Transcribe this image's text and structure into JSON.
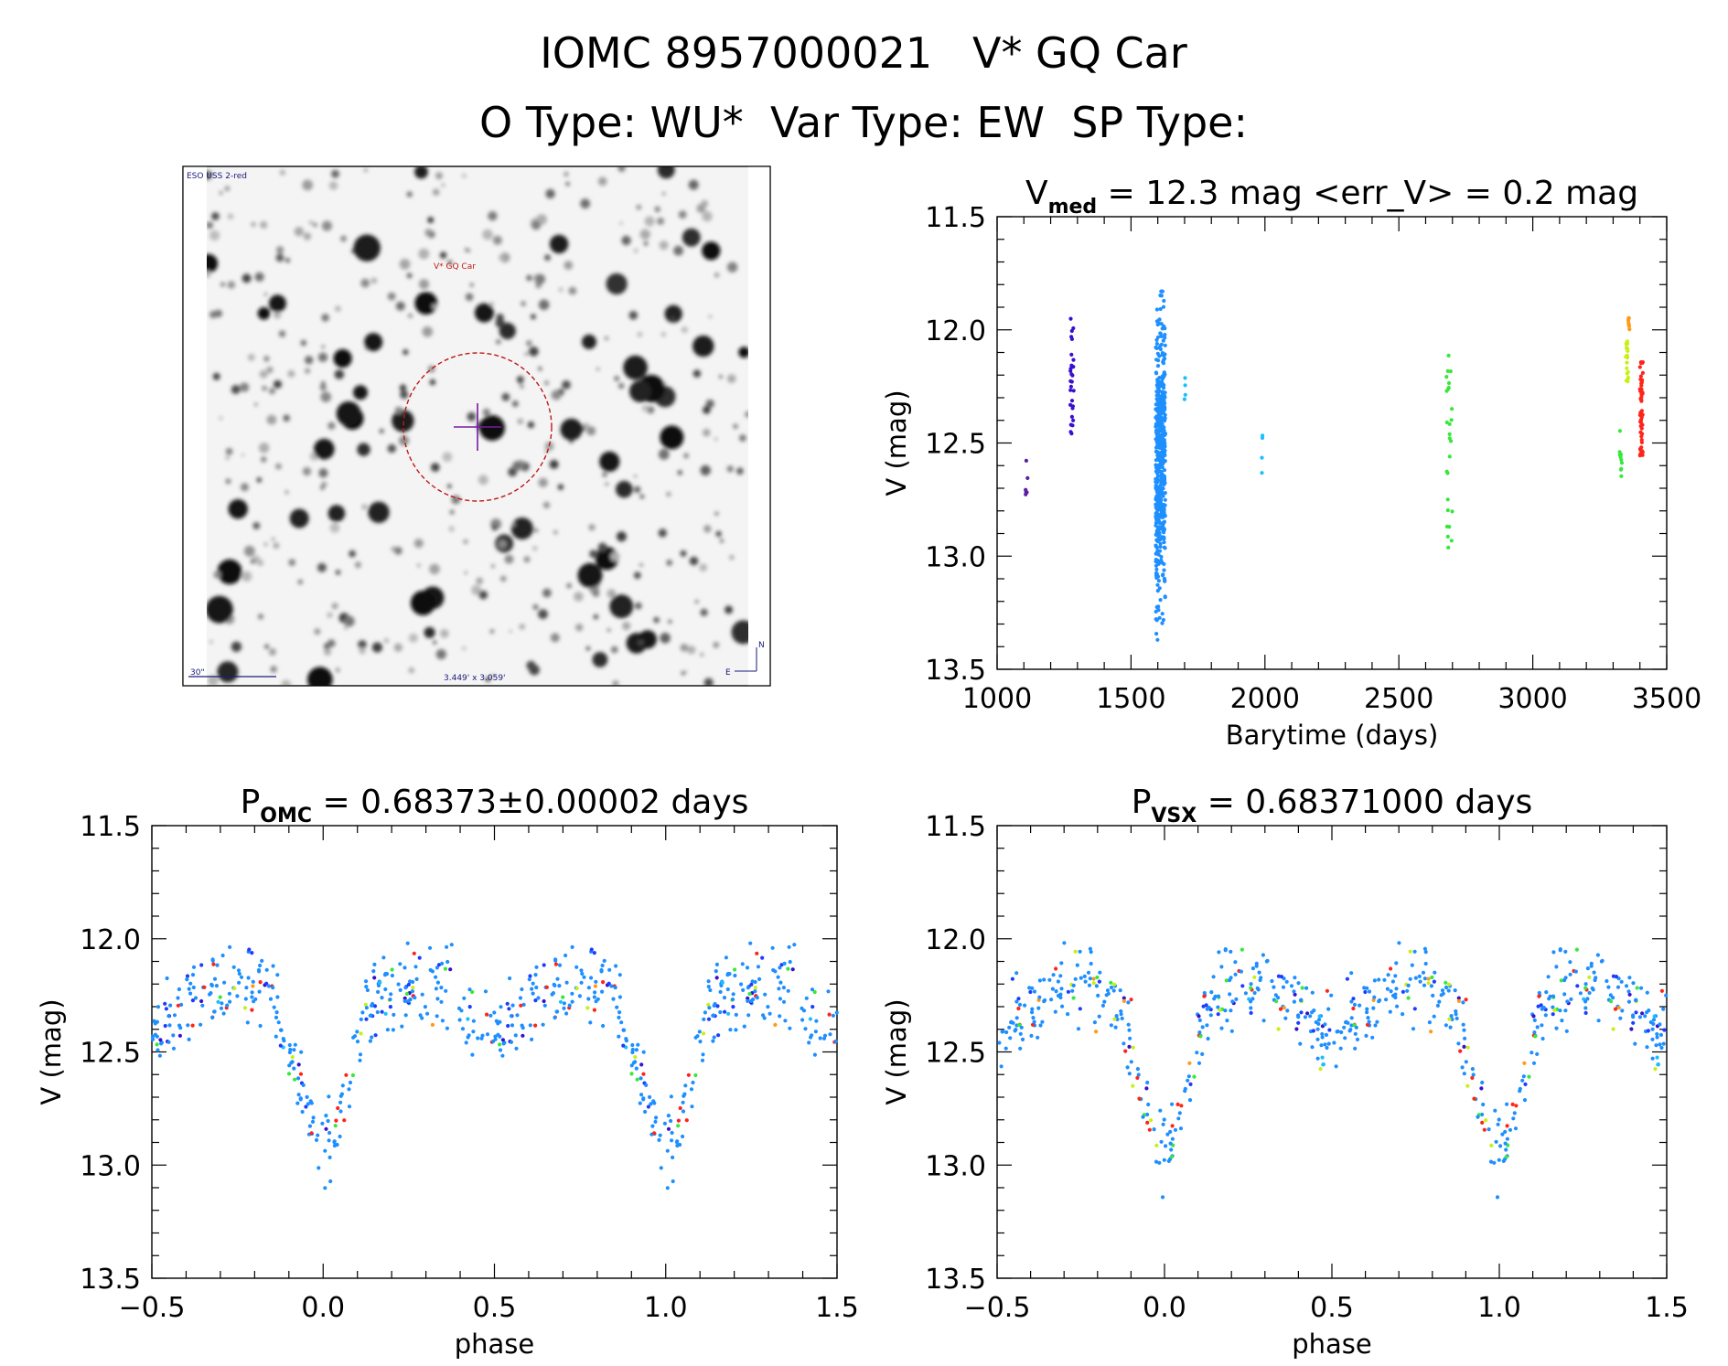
{
  "header": {
    "line1": "IOMC 8957000021   V* GQ Car",
    "line2": "O Type: WU*  Var Type: EW  SP Type:"
  },
  "thumbnail": {
    "survey_label": "ESO USS 2-red",
    "target_label": "V* GQ Car",
    "scale_label": "30\"",
    "fov_label": "3.449' x 3.059'",
    "compass_n": "N",
    "compass_e": "E"
  },
  "colors": {
    "lightcurve_main": "#1e8fff",
    "purple": "#5a1ea6",
    "indigo": "#3a0fd0",
    "blue": "#1e3cff",
    "cyan": "#18c0ff",
    "green": "#36e83a",
    "lime": "#c8f014",
    "yellow": "#f0f014",
    "orange": "#ff9a18",
    "red": "#ff2418",
    "circle": "#c01818",
    "marker": "#7a1aa0"
  },
  "chart_data": [
    {
      "type": "scatter",
      "id": "lightcurve",
      "title_main": "V",
      "title_sub": "med",
      "title_rest": " = 12.3 mag <err_V> = 0.2 mag",
      "xlabel": "Barytime (days)",
      "ylabel": "V (mag)",
      "xlim": [
        1000,
        3500
      ],
      "ylim": [
        13.5,
        11.5
      ],
      "xticks": [
        1000,
        1500,
        2000,
        2500,
        3000,
        3500
      ],
      "xtick_labels": [
        "1000",
        "1500",
        "2000",
        "2500",
        "3000",
        "3500"
      ],
      "yticks": [
        11.5,
        12.0,
        12.5,
        13.0,
        13.5
      ],
      "ytick_labels": [
        "11.5",
        "12.0",
        "12.5",
        "13.0",
        "13.5"
      ],
      "series": [
        {
          "name": "epoch-1100",
          "color": "purple",
          "x_center": 1110,
          "x_spread": 4,
          "y_min": 12.57,
          "y_max": 12.73,
          "n": 6
        },
        {
          "name": "epoch-1280",
          "color": "indigo",
          "x_center": 1280,
          "x_spread": 8,
          "y_min": 11.95,
          "y_max": 12.46,
          "n": 28
        },
        {
          "name": "epoch-1610",
          "color": "lightcurve_main",
          "x_center": 1610,
          "x_spread": 18,
          "y_min": 11.83,
          "y_max": 13.37,
          "n": 520
        },
        {
          "name": "epoch-1700",
          "color": "cyan",
          "x_center": 1700,
          "x_spread": 4,
          "y_min": 12.17,
          "y_max": 12.32,
          "n": 4
        },
        {
          "name": "epoch-1990",
          "color": "cyan",
          "x_center": 1990,
          "x_spread": 3,
          "y_min": 12.43,
          "y_max": 12.66,
          "n": 4
        },
        {
          "name": "epoch-2690",
          "color": "green",
          "x_center": 2690,
          "x_spread": 12,
          "y_min": 12.08,
          "y_max": 12.97,
          "n": 26
        },
        {
          "name": "epoch-3330",
          "color": "green",
          "x_center": 3328,
          "x_spread": 5,
          "y_min": 12.41,
          "y_max": 12.65,
          "n": 10
        },
        {
          "name": "epoch-3350a",
          "color": "lime",
          "x_center": 3352,
          "x_spread": 5,
          "y_min": 12.03,
          "y_max": 12.27,
          "n": 20
        },
        {
          "name": "epoch-3350b",
          "color": "orange",
          "x_center": 3358,
          "x_spread": 3,
          "y_min": 11.94,
          "y_max": 12.0,
          "n": 8
        },
        {
          "name": "epoch-3400",
          "color": "red",
          "x_center": 3405,
          "x_spread": 6,
          "y_min": 12.14,
          "y_max": 12.6,
          "n": 50
        }
      ]
    },
    {
      "type": "scatter",
      "id": "phase-omc",
      "title_main": "P",
      "title_sub": "OMC",
      "title_rest": " = 0.68373±0.00002 days",
      "xlabel": "phase",
      "ylabel": "V (mag)",
      "xlim": [
        -0.5,
        1.5
      ],
      "ylim": [
        13.5,
        11.5
      ],
      "xticks": [
        -0.5,
        0.0,
        0.5,
        1.0,
        1.5
      ],
      "xtick_labels": [
        "−0.5",
        "0.0",
        "0.5",
        "1.0",
        "1.5"
      ],
      "yticks": [
        11.5,
        12.0,
        12.5,
        13.0,
        13.5
      ],
      "ytick_labels": [
        "11.5",
        "12.0",
        "12.5",
        "13.0",
        "13.5"
      ],
      "model": {
        "mean": 12.3,
        "amp_primary": 0.88,
        "amp_secondary": 0.4,
        "scatter": 0.19
      },
      "seed": 17
    },
    {
      "type": "scatter",
      "id": "phase-vsx",
      "title_main": "P",
      "title_sub": "VSX",
      "title_rest": " = 0.68371000 days",
      "xlabel": "phase",
      "ylabel": "V (mag)",
      "xlim": [
        -0.5,
        1.5
      ],
      "ylim": [
        13.5,
        11.5
      ],
      "xticks": [
        -0.5,
        0.0,
        0.5,
        1.0,
        1.5
      ],
      "xtick_labels": [
        "−0.5",
        "0.0",
        "0.5",
        "1.0",
        "1.5"
      ],
      "yticks": [
        11.5,
        12.0,
        12.5,
        13.0,
        13.5
      ],
      "ytick_labels": [
        "11.5",
        "12.0",
        "12.5",
        "13.0",
        "13.5"
      ],
      "model": {
        "mean": 12.3,
        "amp_primary": 0.88,
        "amp_secondary": 0.4,
        "scatter": 0.19
      },
      "seed": 41
    }
  ]
}
